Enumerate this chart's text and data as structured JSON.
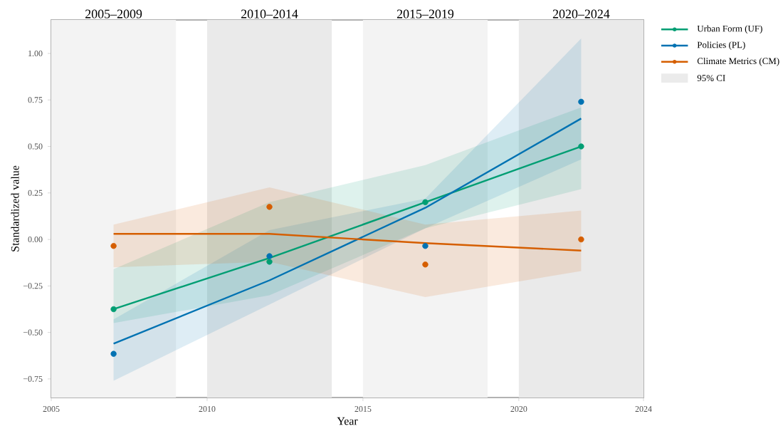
{
  "chart_data": {
    "type": "line",
    "xlabel": "Year",
    "ylabel": "Standardized value",
    "x": [
      2007,
      2012,
      2017,
      2022
    ],
    "xlim": [
      2005,
      2024
    ],
    "xticks": [
      2005,
      2010,
      2015,
      2020,
      2024
    ],
    "ylim": [
      -0.85,
      1.18
    ],
    "yticks": [
      {
        "value": -0.75,
        "label": "−0.75"
      },
      {
        "value": -0.5,
        "label": "−0.50"
      },
      {
        "value": -0.25,
        "label": "−0.25"
      },
      {
        "value": 0,
        "label": "0.00"
      },
      {
        "value": 0.25,
        "label": "0.25"
      },
      {
        "value": 0.5,
        "label": "0.50"
      },
      {
        "value": 0.75,
        "label": "0.75"
      },
      {
        "value": 1,
        "label": "1.00"
      }
    ],
    "series": [
      {
        "name": "Urban Form (UF)",
        "color": "#009e73",
        "type": "line",
        "values": [
          -0.375,
          -0.1,
          0.2,
          0.5
        ],
        "lower": [
          -0.45,
          -0.3,
          0.06,
          0.27
        ],
        "upper": [
          -0.16,
          0.2,
          0.4,
          0.71
        ]
      },
      {
        "name": "Policies (PL)",
        "color": "#0072b2",
        "type": "line",
        "values": [
          -0.56,
          -0.22,
          0.17,
          0.65
        ],
        "lower": [
          -0.76,
          -0.35,
          0.06,
          0.43
        ],
        "upper": [
          -0.43,
          0.05,
          0.22,
          1.08
        ]
      },
      {
        "name": "Climate Metrics (CM)",
        "color": "#d55e00",
        "type": "line",
        "values": [
          0.03,
          0.03,
          -0.02,
          -0.06
        ],
        "lower": [
          -0.15,
          -0.12,
          -0.31,
          -0.17
        ],
        "upper": [
          0.08,
          0.28,
          0.08,
          0.155
        ]
      },
      {
        "color": "#009e73",
        "type": "scatter",
        "marker": "circle",
        "values": [
          -0.375,
          -0.12,
          0.2,
          0.5
        ]
      },
      {
        "color": "#0072b2",
        "type": "scatter",
        "marker": "circle",
        "values": [
          -0.615,
          -0.09,
          -0.035,
          0.74
        ]
      },
      {
        "color": "#d55e00",
        "type": "scatter",
        "marker": "circle",
        "values": [
          -0.035,
          0.175,
          -0.135,
          0.0
        ]
      }
    ],
    "legend": "right",
    "annotations": [
      "95% CI"
    ],
    "bands": [
      {
        "axis": "x",
        "from": 2005,
        "to": 2009,
        "label": "2005–2009",
        "color": "#f3f3f3"
      },
      {
        "axis": "x",
        "from": 2010,
        "to": 2014,
        "label": "2010–2014",
        "color": "#eaeaea"
      },
      {
        "axis": "x",
        "from": 2015,
        "to": 2019,
        "label": "2015–2019",
        "color": "#f3f3f3"
      },
      {
        "axis": "x",
        "from": 2020,
        "to": 2024,
        "label": "2020–2024",
        "color": "#eaeaea"
      }
    ]
  }
}
